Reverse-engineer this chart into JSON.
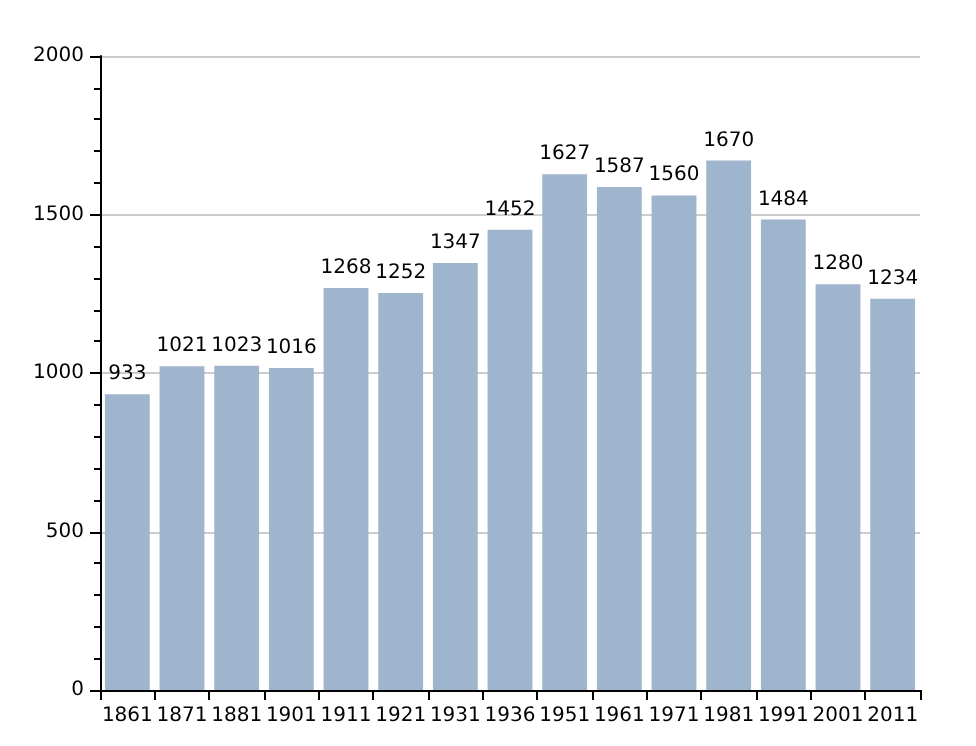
{
  "chart_data": {
    "type": "bar",
    "categories": [
      "1861",
      "1871",
      "1881",
      "1901",
      "1911",
      "1921",
      "1931",
      "1936",
      "1951",
      "1961",
      "1971",
      "1981",
      "1991",
      "2001",
      "2011"
    ],
    "values": [
      933,
      1021,
      1023,
      1016,
      1268,
      1252,
      1347,
      1452,
      1627,
      1587,
      1560,
      1670,
      1484,
      1280,
      1234
    ],
    "color": "#9fb4cd",
    "data_labels": true,
    "ylim": [
      0,
      2000
    ],
    "yticks": [
      0,
      500,
      1000,
      1500,
      2000
    ],
    "grid": "y"
  }
}
